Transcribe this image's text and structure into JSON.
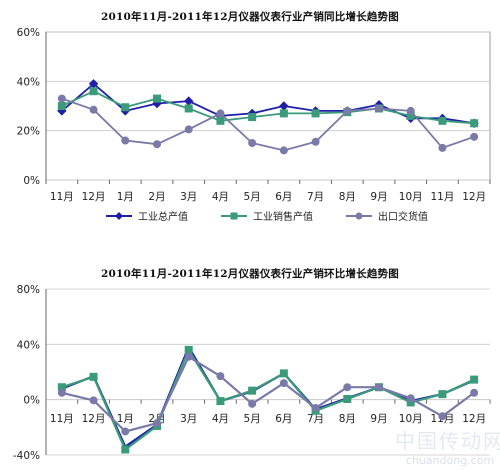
{
  "colors": {
    "series_navy": "#1f1fa8",
    "series_green": "#3a9a7a",
    "series_purple": "#7a7aa8",
    "grid": "#c8c8c8",
    "axis": "#666666"
  },
  "watermark": {
    "main": "中国传动网",
    "sub": "chuandong.com"
  },
  "chart_data": [
    {
      "type": "line",
      "title": "2010年11月-2011年12月仪器仪表行业产销同比增长趋势图",
      "categories": [
        "11月",
        "12月",
        "1月",
        "2月",
        "3月",
        "4月",
        "5月",
        "6月",
        "7月",
        "8月",
        "9月",
        "10月",
        "11月",
        "12月"
      ],
      "ylim": [
        0,
        60
      ],
      "yticks": [
        0,
        20,
        40,
        60
      ],
      "ytick_labels": [
        "0%",
        "20%",
        "40%",
        "60%"
      ],
      "grid": true,
      "legend_placement": "bottom",
      "series": [
        {
          "name": "工业总产值",
          "marker": "diamond",
          "color": "#1f1fa8",
          "values": [
            28,
            39,
            28,
            31,
            32,
            26,
            27,
            30,
            28,
            28,
            30.5,
            25,
            25,
            23
          ]
        },
        {
          "name": "工业销售产值",
          "marker": "square",
          "color": "#3a9a7a",
          "values": [
            30,
            36,
            29.5,
            33,
            29,
            24,
            25.5,
            27,
            27,
            27.5,
            29,
            26,
            24,
            23
          ]
        },
        {
          "name": "出口交货值",
          "marker": "circle",
          "color": "#7a7aa8",
          "values": [
            33,
            28.5,
            16,
            14.5,
            20.5,
            27,
            15,
            12,
            15.5,
            28,
            29,
            28,
            13,
            17.5
          ]
        }
      ]
    },
    {
      "type": "line",
      "title": "2010年11月-2011年12月仪器仪表行业产销环比增长趋势图",
      "categories": [
        "11月",
        "12月",
        "1月",
        "2月",
        "3月",
        "4月",
        "5月",
        "6月",
        "7月",
        "8月",
        "9月",
        "10月",
        "11月",
        "12月"
      ],
      "ylim": [
        -40,
        80
      ],
      "yticks": [
        -40,
        0,
        40,
        80
      ],
      "ytick_labels": [
        "-40%",
        "0%",
        "40%",
        "80%"
      ],
      "grid": true,
      "legend_placement": "none",
      "series": [
        {
          "name": "工业总产值",
          "marker": "none",
          "color": "#1f1fa8",
          "values": [
            8,
            17,
            -34,
            -18,
            38,
            -1,
            6,
            19,
            -7,
            1,
            9,
            -1,
            4,
            14
          ]
        },
        {
          "name": "工业销售产值",
          "marker": "square",
          "color": "#3a9a7a",
          "values": [
            9,
            16.5,
            -36,
            -19,
            36,
            -1,
            6.5,
            19,
            -8,
            0.5,
            9,
            -2,
            4,
            14.5
          ]
        },
        {
          "name": "出口交货值",
          "marker": "circle",
          "color": "#7a7aa8",
          "values": [
            5,
            -0.5,
            -23,
            -17,
            31,
            17,
            -3,
            12,
            -6,
            9,
            9,
            1,
            -12,
            5
          ]
        }
      ]
    }
  ]
}
